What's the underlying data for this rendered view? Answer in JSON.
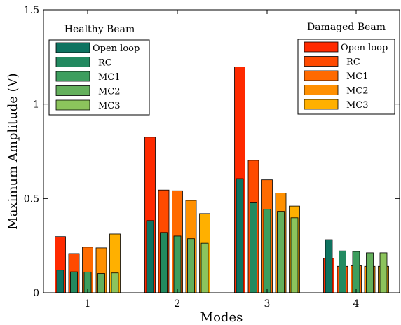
{
  "chart_data": {
    "type": "bar",
    "xlabel": "Modes",
    "ylabel": "Maximum Amplitude (V)",
    "categories": [
      "1",
      "2",
      "3",
      "4"
    ],
    "ylim": [
      0,
      1.5
    ],
    "yticks": [
      0,
      0.5,
      1,
      1.5
    ],
    "yticklabels": [
      "0",
      "0.5",
      "1",
      "1.5"
    ],
    "grid": false,
    "annotations": [
      "Healthy Beam",
      "Damaged Beam"
    ],
    "legends": [
      {
        "group": "healthy",
        "placement": "top-left",
        "entries": [
          "Open loop",
          "RC",
          "MC1",
          "MC2",
          "MC3"
        ]
      },
      {
        "group": "damaged",
        "placement": "top-right",
        "entries": [
          "Open loop",
          "RC",
          "MC1",
          "MC2",
          "MC3"
        ]
      }
    ],
    "series": [
      {
        "name": "Open loop",
        "group": "damaged",
        "color": "#ff2a00",
        "values": [
          0.298,
          0.825,
          1.197,
          0.183
        ]
      },
      {
        "name": "RC",
        "group": "damaged",
        "color": "#ff4a00",
        "values": [
          0.208,
          0.545,
          0.702,
          0.14
        ]
      },
      {
        "name": "MC1",
        "group": "damaged",
        "color": "#ff6a00",
        "values": [
          0.242,
          0.541,
          0.599,
          0.143
        ]
      },
      {
        "name": "MC2",
        "group": "damaged",
        "color": "#ff9000",
        "values": [
          0.238,
          0.49,
          0.529,
          0.14
        ]
      },
      {
        "name": "MC3",
        "group": "damaged",
        "color": "#ffb000",
        "values": [
          0.312,
          0.42,
          0.46,
          0.14
        ]
      },
      {
        "name": "Open loop",
        "group": "healthy",
        "color": "#0e7360",
        "values": [
          0.12,
          0.383,
          0.605,
          0.282
        ]
      },
      {
        "name": "RC",
        "group": "healthy",
        "color": "#228a60",
        "values": [
          0.111,
          0.32,
          0.477,
          0.222
        ]
      },
      {
        "name": "MC1",
        "group": "healthy",
        "color": "#3d9e5e",
        "values": [
          0.11,
          0.301,
          0.443,
          0.219
        ]
      },
      {
        "name": "MC2",
        "group": "healthy",
        "color": "#64b05c",
        "values": [
          0.102,
          0.287,
          0.432,
          0.212
        ]
      },
      {
        "name": "MC3",
        "group": "healthy",
        "color": "#8cc45c",
        "values": [
          0.105,
          0.263,
          0.398,
          0.212
        ]
      }
    ]
  }
}
